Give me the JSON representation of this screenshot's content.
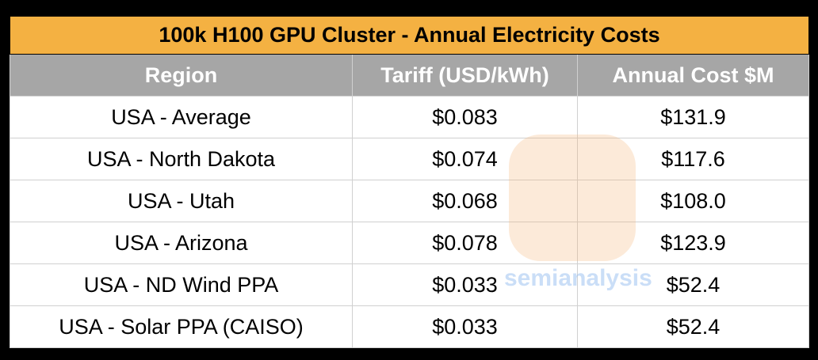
{
  "table": {
    "title": "100k H100 GPU Cluster - Annual Electricity Costs",
    "header": [
      "Region",
      "Tariff (USD/kWh)",
      "Annual Cost $M"
    ],
    "rows": [
      [
        "USA - Average",
        "$0.083",
        "$131.9"
      ],
      [
        "USA - North Dakota",
        "$0.074",
        "$117.6"
      ],
      [
        "USA - Utah",
        "$0.068",
        "$108.0"
      ],
      [
        "USA - Arizona",
        "$0.078",
        "$123.9"
      ],
      [
        "USA - ND Wind PPA",
        "$0.033",
        "$52.4"
      ],
      [
        "USA - Solar PPA (CAISO)",
        "$0.033",
        "$52.4"
      ]
    ]
  },
  "watermark": "semianalysis"
}
